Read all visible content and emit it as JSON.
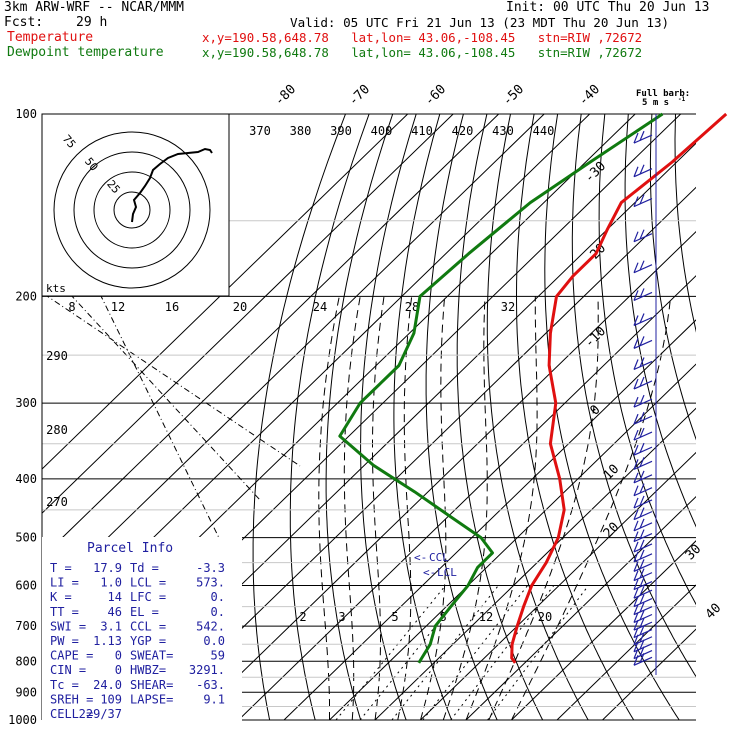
{
  "header": {
    "model": "3km ARW-WRF -- NCAR/MMM",
    "init": "Init: 00 UTC Thu 20 Jun 13",
    "fcst_label": "Fcst:",
    "fcst_value": "29 h",
    "valid": "Valid: 05 UTC Fri 21 Jun 13 (23 MDT Thu 20 Jun 13)",
    "legend": [
      {
        "name": "Temperature",
        "info": "x,y=190.58,648.78   lat,lon= 43.06,-108.45   stn=RIW ,72672",
        "color": "#e01010"
      },
      {
        "name": "Dewpoint temperature",
        "info": "x,y=190.58,648.78   lat,lon= 43.06,-108.45   stn=RIW ,72672",
        "color": "#107a10"
      }
    ]
  },
  "barb_legend": {
    "line1": "Full barb:",
    "line2": "5 m s",
    "sup": "-1"
  },
  "hodo_labels": {
    "units": "kts",
    "rings": [
      "25",
      "50",
      "75"
    ]
  },
  "parcel_info": {
    "title": "Parcel Info",
    "rows": [
      [
        "T  =",
        "17.9",
        "Td =",
        "-3.3"
      ],
      [
        "LI =",
        "1.0",
        "LCL =",
        "573."
      ],
      [
        "K  =",
        "14",
        "LFC =",
        "0."
      ],
      [
        "TT =",
        "46",
        "EL  =",
        "0."
      ],
      [
        "SWI =",
        "3.1",
        "CCL =",
        "542."
      ],
      [
        "PW =",
        "1.13",
        "YGP =",
        "0.0"
      ],
      [
        "CAPE =",
        "0",
        "SWEAT=",
        "59"
      ],
      [
        "CIN =",
        "0",
        "HWBZ=",
        "3291."
      ],
      [
        "Tc =",
        "24.0",
        "SHEAR=",
        "-63."
      ],
      [
        "SREH =",
        "109",
        "LAPSE=",
        "9.1"
      ],
      [
        "CELL =",
        "229/37",
        "",
        ""
      ]
    ]
  },
  "level_labels": {
    "ccl": "CCL",
    "lcl": "LCL"
  },
  "colors": {
    "temperature": "#e01010",
    "dewpoint": "#107a10",
    "barbs": "#2020a0",
    "grid": "#000000"
  },
  "chart_data": {
    "type": "line",
    "diagram": "skew-T log-p",
    "y_axis": {
      "ticks": [
        100,
        200,
        300,
        400,
        500,
        600,
        700,
        800,
        900,
        1000
      ],
      "log_scale": true
    },
    "skewed_isotherm_labels": [
      "-80",
      "-70",
      "-60",
      "-50",
      "-40",
      "-30",
      "-20",
      "-10",
      "0",
      "10",
      "20",
      "30",
      "40"
    ],
    "theta_labels": [
      "370",
      "380",
      "390",
      "400",
      "410",
      "420",
      "430",
      "440"
    ],
    "theta_left_labels": [
      "290",
      "280",
      "270"
    ],
    "mixing_ratio_top_labels": [
      "8",
      "12",
      "16",
      "20",
      "24",
      "28",
      "32"
    ],
    "mixing_ratio_bottom_labels": [
      "2",
      "3",
      "5",
      "8",
      "12",
      "20"
    ],
    "series": [
      {
        "name": "Temperature",
        "points": [
          [
            100,
            -60
          ],
          [
            120,
            -61
          ],
          [
            140,
            -63
          ],
          [
            155,
            -60
          ],
          [
            170,
            -57
          ],
          [
            185,
            -57
          ],
          [
            200,
            -56
          ],
          [
            230,
            -49
          ],
          [
            260,
            -42
          ],
          [
            300,
            -32
          ],
          [
            350,
            -24
          ],
          [
            400,
            -14
          ],
          [
            450,
            -6
          ],
          [
            500,
            -1
          ],
          [
            550,
            2
          ],
          [
            600,
            4
          ],
          [
            650,
            7
          ],
          [
            700,
            10
          ],
          [
            750,
            13
          ],
          [
            790,
            16
          ],
          [
            805,
            17.9
          ]
        ]
      },
      {
        "name": "Dewpoint temperature",
        "points": [
          [
            100,
            -74
          ],
          [
            120,
            -79
          ],
          [
            140,
            -83
          ],
          [
            170,
            -85
          ],
          [
            200,
            -86
          ],
          [
            230,
            -79
          ],
          [
            260,
            -75
          ],
          [
            300,
            -75
          ],
          [
            340,
            -72
          ],
          [
            380,
            -58
          ],
          [
            420,
            -43
          ],
          [
            460,
            -30
          ],
          [
            500,
            -18
          ],
          [
            530,
            -12
          ],
          [
            560,
            -12
          ],
          [
            600,
            -10
          ],
          [
            650,
            -9
          ],
          [
            700,
            -8
          ],
          [
            750,
            -5
          ],
          [
            805,
            -3.3
          ]
        ]
      }
    ],
    "wind_barbs_pressure": [
      110,
      125,
      140,
      160,
      180,
      200,
      220,
      240,
      260,
      280,
      300,
      320,
      340,
      360,
      380,
      400,
      420,
      440,
      460,
      480,
      500,
      520,
      540,
      560,
      580,
      600,
      620,
      640,
      660,
      680,
      700,
      720,
      740,
      760,
      780,
      800
    ]
  }
}
